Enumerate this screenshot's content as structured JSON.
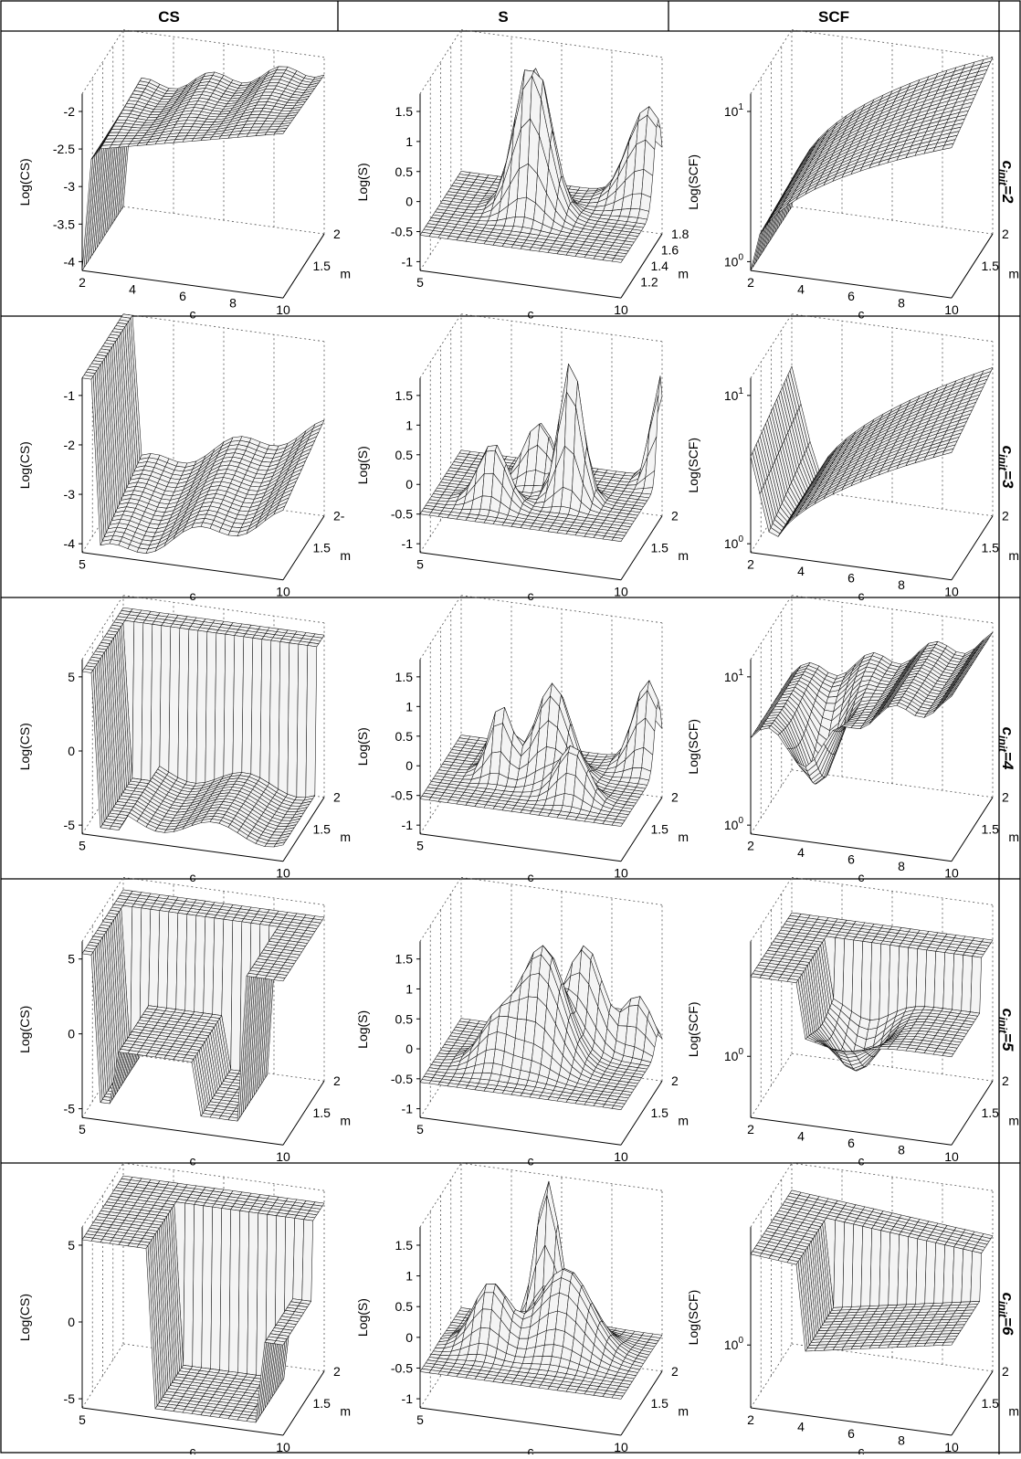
{
  "headers": [
    "CS",
    "S",
    "SCF"
  ],
  "row_labels": [
    {
      "main": "c",
      "sub": "init",
      "value": "=2"
    },
    {
      "main": "c",
      "sub": "init",
      "value": "=3"
    },
    {
      "main": "c",
      "sub": "init",
      "value": "=4"
    },
    {
      "main": "c",
      "sub": "init",
      "value": "=5"
    },
    {
      "main": "c",
      "sub": "init",
      "value": "=6"
    }
  ],
  "chart_data": [
    {
      "type": "surface",
      "row": "c_init=2",
      "column": "CS",
      "zlabel": "Log(CS)",
      "xlabel": "c",
      "ylabel": "m",
      "z_ticks": [
        "-2",
        "-2.5",
        "-3",
        "-3.5",
        "-4"
      ],
      "x_ticks": [
        "2",
        "4",
        "6",
        "8",
        "10"
      ],
      "y_ticks": [
        "2",
        "1.5"
      ],
      "xlim": [
        2,
        10
      ],
      "ylim": [
        1.1,
        2
      ],
      "zlim": [
        -4,
        -1.6
      ],
      "grid": true
    },
    {
      "type": "surface",
      "row": "c_init=2",
      "column": "S",
      "zlabel": "Log(S)",
      "xlabel": "c",
      "ylabel": "m",
      "z_ticks": [
        "1.5",
        "1",
        "0.5",
        "0",
        "-0.5",
        "-1"
      ],
      "x_ticks": [
        "5",
        "10"
      ],
      "y_ticks": [
        "1.8",
        "1.6",
        "1.4",
        "1.2"
      ],
      "xlim": [
        2,
        10
      ],
      "ylim": [
        1.1,
        2
      ],
      "zlim": [
        -1,
        1.5
      ],
      "grid": true
    },
    {
      "type": "surface",
      "row": "c_init=2",
      "column": "SCF",
      "zlabel": "Log(SCF)",
      "xlabel": "c",
      "ylabel": "m",
      "z_ticks": [
        "10^1",
        "10^0"
      ],
      "x_ticks": [
        "2",
        "4",
        "6",
        "8",
        "10"
      ],
      "y_ticks": [
        "2",
        "1.5"
      ],
      "xlim": [
        2,
        10
      ],
      "ylim": [
        1.1,
        2
      ],
      "zscale": "log",
      "grid": true
    },
    {
      "type": "surface",
      "row": "c_init=3",
      "column": "CS",
      "zlabel": "Log(CS)",
      "xlabel": "c",
      "ylabel": "m",
      "z_ticks": [
        "-1",
        "-2",
        "-3",
        "-4"
      ],
      "x_ticks": [
        "5",
        "10"
      ],
      "y_ticks": [
        "2-",
        "1.5"
      ],
      "xlim": [
        3,
        10
      ],
      "ylim": [
        1.1,
        2
      ],
      "zlim": [
        -4,
        -0.5
      ],
      "grid": true
    },
    {
      "type": "surface",
      "row": "c_init=3",
      "column": "S",
      "zlabel": "Log(S)",
      "xlabel": "c",
      "ylabel": "m",
      "z_ticks": [
        "1.5",
        "1",
        "0.5",
        "0",
        "-0.5",
        "-1"
      ],
      "x_ticks": [
        "5",
        "10"
      ],
      "y_ticks": [
        "2",
        "1.5"
      ],
      "xlim": [
        3,
        10
      ],
      "ylim": [
        1.1,
        2
      ],
      "zlim": [
        -1,
        1.5
      ],
      "grid": true
    },
    {
      "type": "surface",
      "row": "c_init=3",
      "column": "SCF",
      "zlabel": "Log(SCF)",
      "xlabel": "c",
      "ylabel": "m",
      "z_ticks": [
        "10^1",
        "10^0"
      ],
      "x_ticks": [
        "2",
        "4",
        "6",
        "8",
        "10"
      ],
      "y_ticks": [
        "2",
        "1.5"
      ],
      "xlim": [
        2,
        10
      ],
      "ylim": [
        1.1,
        2
      ],
      "zscale": "log",
      "grid": true
    },
    {
      "type": "surface",
      "row": "c_init=4",
      "column": "CS",
      "zlabel": "Log(CS)",
      "xlabel": "c",
      "ylabel": "m",
      "z_ticks": [
        "5",
        "0",
        "-5"
      ],
      "x_ticks": [
        "5",
        "10"
      ],
      "y_ticks": [
        "2",
        "1.5"
      ],
      "xlim": [
        3,
        10
      ],
      "ylim": [
        1.1,
        2
      ],
      "zlim": [
        -5,
        5
      ],
      "grid": true
    },
    {
      "type": "surface",
      "row": "c_init=4",
      "column": "S",
      "zlabel": "Log(S)",
      "xlabel": "c",
      "ylabel": "m",
      "z_ticks": [
        "1.5",
        "1",
        "0.5",
        "0",
        "-0.5",
        "-1"
      ],
      "x_ticks": [
        "5",
        "10"
      ],
      "y_ticks": [
        "2",
        "1.5"
      ],
      "xlim": [
        3,
        10
      ],
      "ylim": [
        1.1,
        2
      ],
      "zlim": [
        -1,
        1.5
      ],
      "grid": true
    },
    {
      "type": "surface",
      "row": "c_init=4",
      "column": "SCF",
      "zlabel": "Log(SCF)",
      "xlabel": "c",
      "ylabel": "m",
      "z_ticks": [
        "10^1",
        "10^0"
      ],
      "x_ticks": [
        "2",
        "4",
        "6",
        "8",
        "10"
      ],
      "y_ticks": [
        "2",
        "1.5"
      ],
      "xlim": [
        2,
        10
      ],
      "ylim": [
        1.1,
        2
      ],
      "zscale": "log",
      "grid": true
    },
    {
      "type": "surface",
      "row": "c_init=5",
      "column": "CS",
      "zlabel": "Log(CS)",
      "xlabel": "c",
      "ylabel": "m",
      "z_ticks": [
        "5",
        "0",
        "-5"
      ],
      "x_ticks": [
        "5",
        "10"
      ],
      "y_ticks": [
        "2",
        "1.5"
      ],
      "xlim": [
        3,
        10
      ],
      "ylim": [
        1.1,
        2
      ],
      "zlim": [
        -5,
        5
      ],
      "grid": true
    },
    {
      "type": "surface",
      "row": "c_init=5",
      "column": "S",
      "zlabel": "Log(S)",
      "xlabel": "c",
      "ylabel": "m",
      "z_ticks": [
        "1.5",
        "1",
        "0.5",
        "0",
        "-0.5",
        "-1"
      ],
      "x_ticks": [
        "5",
        "10"
      ],
      "y_ticks": [
        "2",
        "1.5"
      ],
      "xlim": [
        3,
        10
      ],
      "ylim": [
        1.1,
        2
      ],
      "zlim": [
        -1,
        1.5
      ],
      "grid": true
    },
    {
      "type": "surface",
      "row": "c_init=5",
      "column": "SCF",
      "zlabel": "Log(SCF)",
      "xlabel": "c",
      "ylabel": "m",
      "z_ticks": [
        "10^0"
      ],
      "x_ticks": [
        "2",
        "4",
        "6",
        "8",
        "10"
      ],
      "y_ticks": [
        "2",
        "1.5"
      ],
      "xlim": [
        2,
        10
      ],
      "ylim": [
        1.1,
        2
      ],
      "zscale": "log",
      "grid": true
    },
    {
      "type": "surface",
      "row": "c_init=6",
      "column": "CS",
      "zlabel": "Log(CS)",
      "xlabel": "c",
      "ylabel": "m",
      "z_ticks": [
        "5",
        "0",
        "-5"
      ],
      "x_ticks": [
        "5",
        "10"
      ],
      "y_ticks": [
        "2",
        "1.5"
      ],
      "xlim": [
        3,
        10
      ],
      "ylim": [
        1.1,
        2
      ],
      "zlim": [
        -5,
        5
      ],
      "grid": true
    },
    {
      "type": "surface",
      "row": "c_init=6",
      "column": "S",
      "zlabel": "Log(S)",
      "xlabel": "c",
      "ylabel": "m",
      "z_ticks": [
        "1.5",
        "1",
        "0.5",
        "0",
        "-0.5",
        "-1"
      ],
      "x_ticks": [
        "5",
        "10"
      ],
      "y_ticks": [
        "2",
        "1.5"
      ],
      "xlim": [
        3,
        10
      ],
      "ylim": [
        1.1,
        2
      ],
      "zlim": [
        -1,
        1.5
      ],
      "grid": true
    },
    {
      "type": "surface",
      "row": "c_init=6",
      "column": "SCF",
      "zlabel": "Log(SCF)",
      "xlabel": "c",
      "ylabel": "m",
      "z_ticks": [
        "10^0"
      ],
      "x_ticks": [
        "2",
        "4",
        "6",
        "8",
        "10"
      ],
      "y_ticks": [
        "2",
        "1.5"
      ],
      "xlim": [
        2,
        10
      ],
      "ylim": [
        1.1,
        2
      ],
      "zscale": "log",
      "grid": true
    }
  ]
}
